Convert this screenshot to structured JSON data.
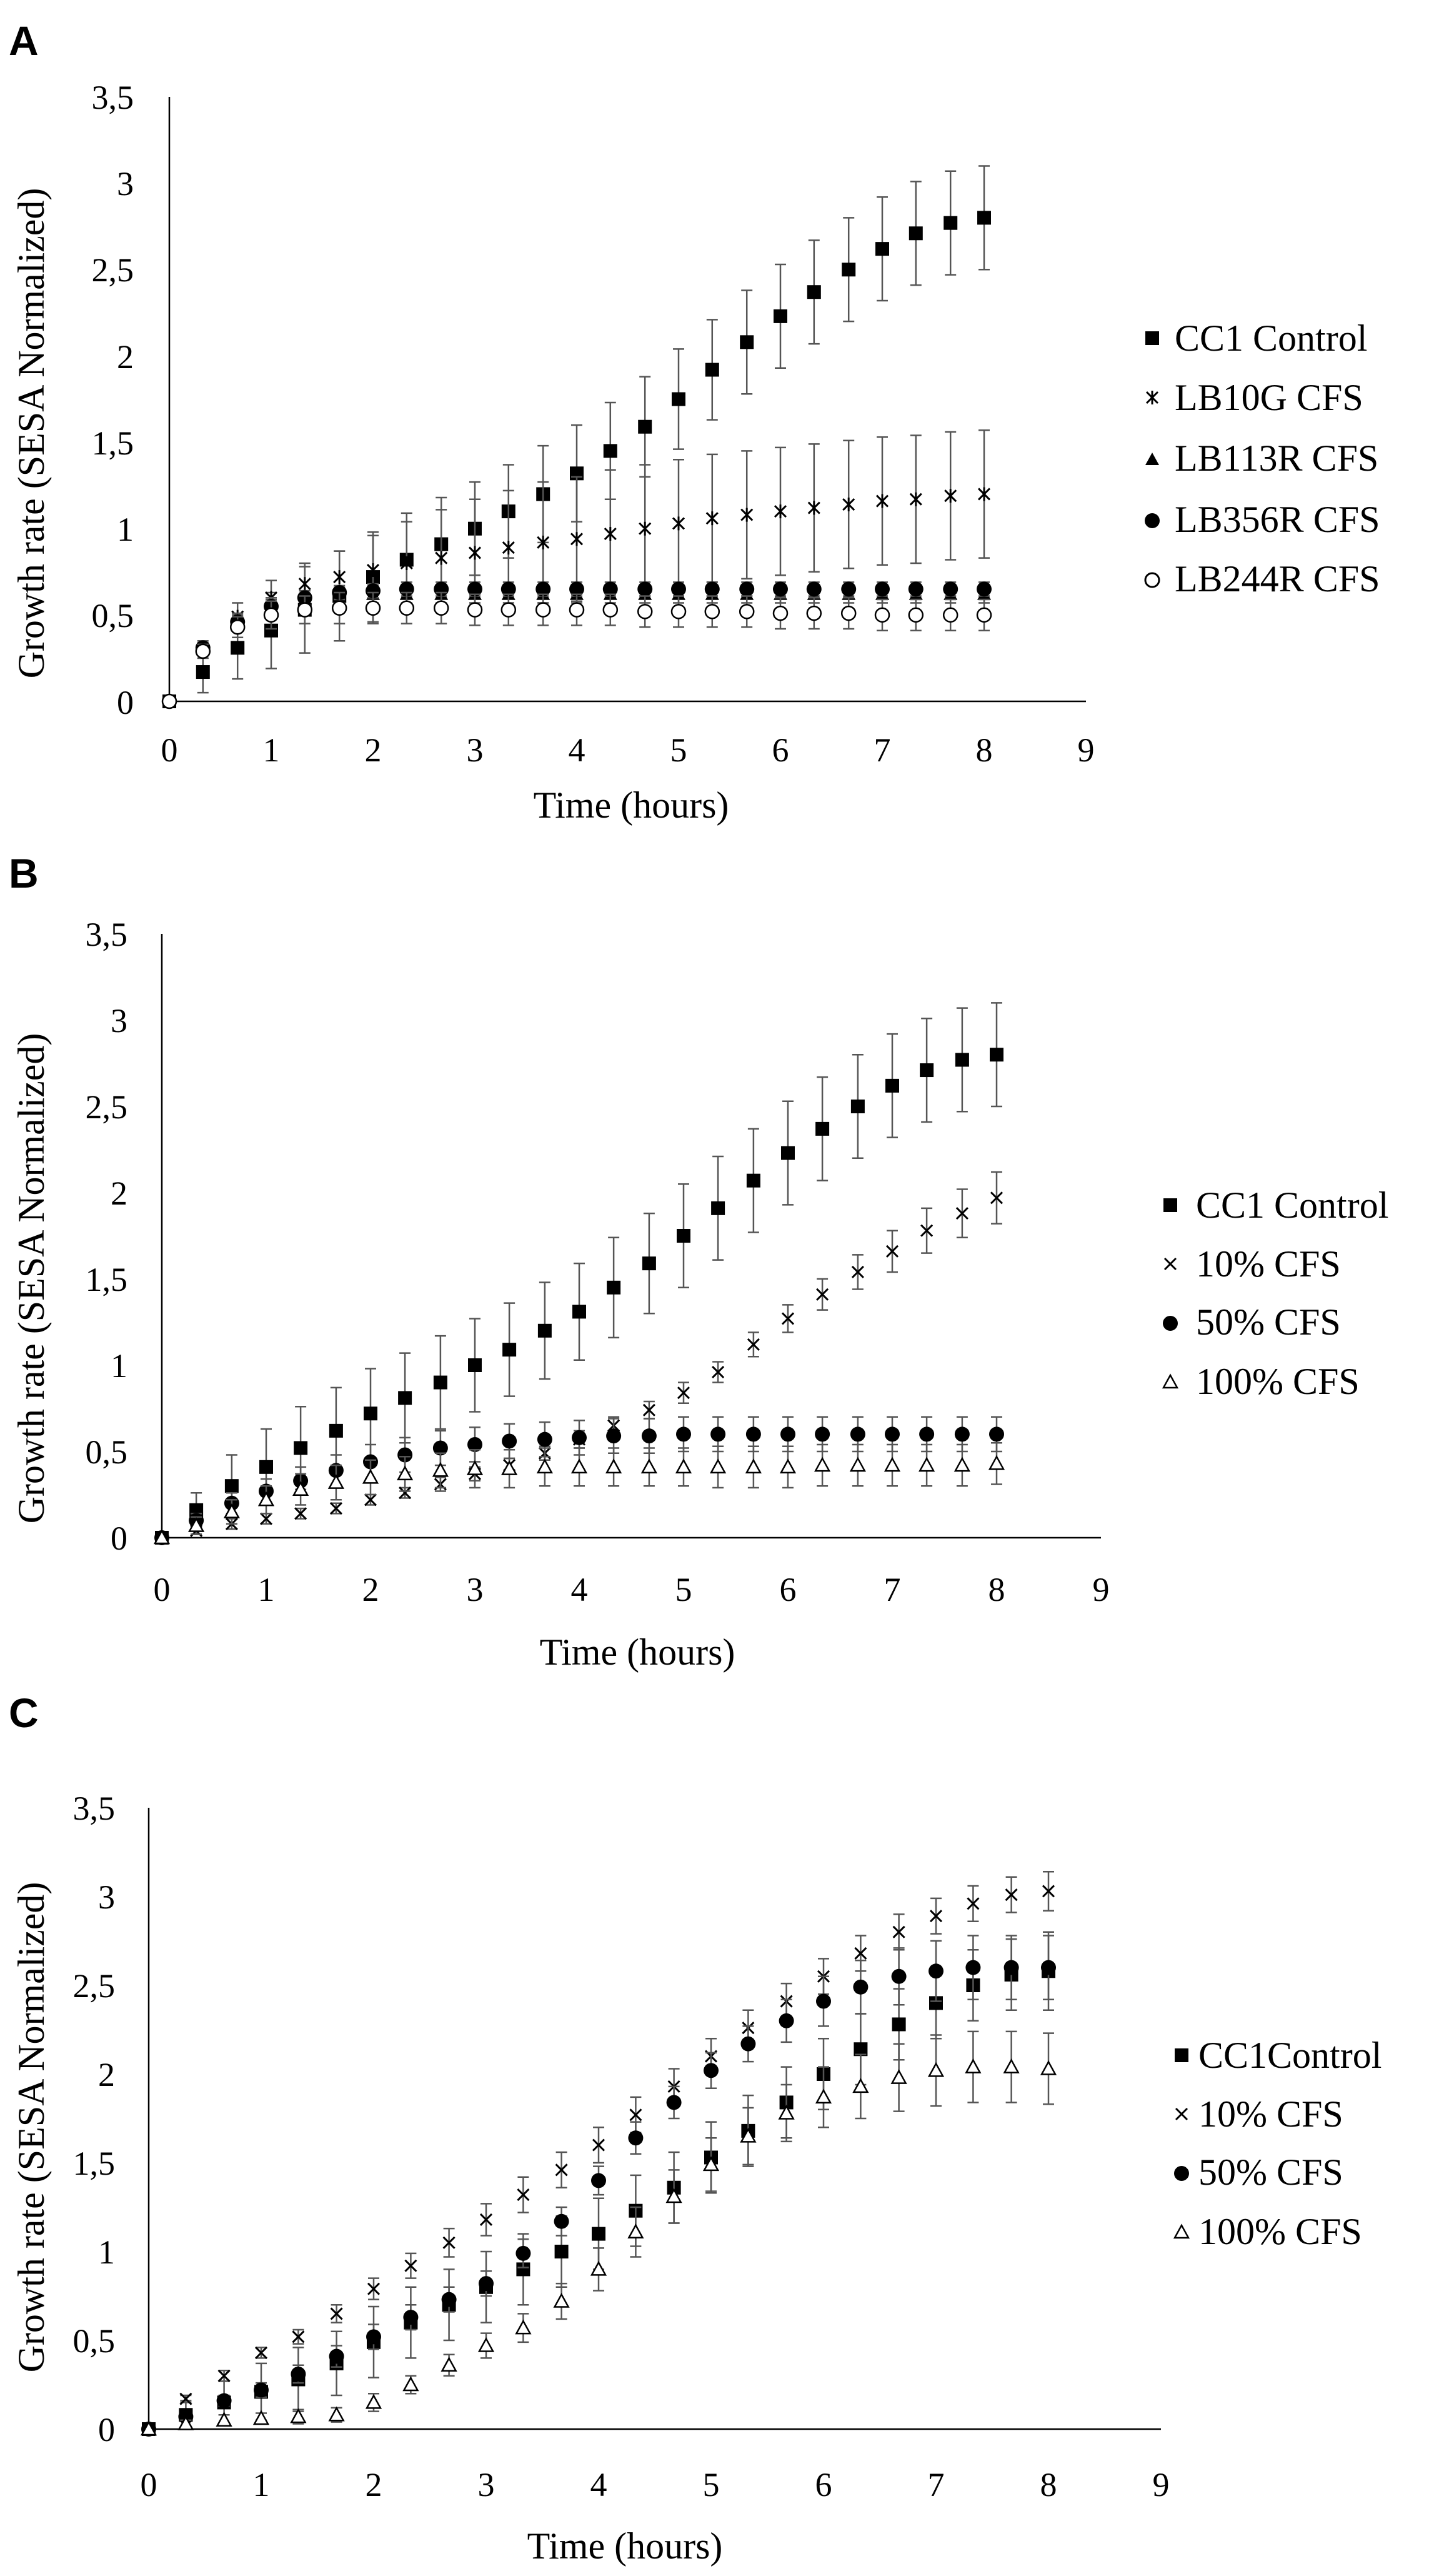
{
  "chart_data": [
    {
      "panel": "A",
      "type": "scatter",
      "xlabel": "Time (hours)",
      "ylabel": "Growth rate (SESA Normalized)",
      "xlim": [
        0,
        9
      ],
      "ylim": [
        0,
        3.5
      ],
      "xticks": [
        "0",
        "1",
        "2",
        "3",
        "4",
        "5",
        "6",
        "7",
        "8",
        "9"
      ],
      "yticks": [
        "0",
        "0,5",
        "1",
        "1,5",
        "2",
        "2,5",
        "3",
        "3,5"
      ],
      "legend_position": "right",
      "x": [
        0,
        0.33,
        0.67,
        1,
        1.33,
        1.67,
        2,
        2.33,
        2.67,
        3,
        3.33,
        3.67,
        4,
        4.33,
        4.67,
        5,
        5.33,
        5.67,
        6,
        6.33,
        6.67,
        7,
        7.33,
        7.67,
        8
      ],
      "series": [
        {
          "name": "CC1 Control",
          "marker": "square",
          "values": [
            0,
            0.17,
            0.31,
            0.41,
            0.53,
            0.61,
            0.72,
            0.82,
            0.91,
            1.0,
            1.1,
            1.2,
            1.32,
            1.45,
            1.59,
            1.75,
            1.92,
            2.08,
            2.23,
            2.37,
            2.5,
            2.62,
            2.71,
            2.77,
            2.8
          ],
          "errors": [
            0,
            0.12,
            0.18,
            0.22,
            0.25,
            0.26,
            0.26,
            0.27,
            0.27,
            0.27,
            0.27,
            0.28,
            0.28,
            0.28,
            0.29,
            0.29,
            0.29,
            0.3,
            0.3,
            0.3,
            0.3,
            0.3,
            0.3,
            0.3,
            0.3
          ]
        },
        {
          "name": "LB10G CFS",
          "marker": "star-x",
          "values": [
            0,
            0.3,
            0.49,
            0.6,
            0.68,
            0.72,
            0.76,
            0.8,
            0.83,
            0.86,
            0.89,
            0.92,
            0.94,
            0.97,
            1.0,
            1.03,
            1.06,
            1.08,
            1.1,
            1.12,
            1.14,
            1.16,
            1.17,
            1.19,
            1.2
          ],
          "errors": [
            0,
            0.05,
            0.08,
            0.1,
            0.12,
            0.15,
            0.2,
            0.24,
            0.28,
            0.31,
            0.33,
            0.35,
            0.36,
            0.37,
            0.37,
            0.37,
            0.37,
            0.37,
            0.37,
            0.37,
            0.37,
            0.37,
            0.37,
            0.37,
            0.37
          ]
        },
        {
          "name": "LB113R CFS",
          "marker": "triangle",
          "values": [
            0,
            0.3,
            0.47,
            0.55,
            0.59,
            0.61,
            0.62,
            0.62,
            0.62,
            0.62,
            0.62,
            0.62,
            0.62,
            0.62,
            0.62,
            0.62,
            0.62,
            0.62,
            0.62,
            0.62,
            0.62,
            0.62,
            0.62,
            0.62,
            0.62
          ],
          "errors": [
            0,
            0.03,
            0.04,
            0.05,
            0.05,
            0.05,
            0.05,
            0.05,
            0.05,
            0.05,
            0.05,
            0.05,
            0.05,
            0.05,
            0.05,
            0.05,
            0.05,
            0.05,
            0.05,
            0.05,
            0.05,
            0.05,
            0.05,
            0.05,
            0.05
          ]
        },
        {
          "name": "LB356R CFS",
          "marker": "circle",
          "values": [
            0,
            0.31,
            0.46,
            0.55,
            0.6,
            0.63,
            0.64,
            0.65,
            0.65,
            0.65,
            0.65,
            0.65,
            0.65,
            0.65,
            0.65,
            0.65,
            0.65,
            0.65,
            0.65,
            0.65,
            0.65,
            0.65,
            0.65,
            0.65,
            0.65
          ],
          "errors": [
            0,
            0.03,
            0.04,
            0.04,
            0.04,
            0.04,
            0.04,
            0.04,
            0.04,
            0.04,
            0.04,
            0.04,
            0.04,
            0.04,
            0.04,
            0.04,
            0.04,
            0.04,
            0.04,
            0.04,
            0.04,
            0.04,
            0.04,
            0.04,
            0.04
          ]
        },
        {
          "name": "LB244R CFS",
          "marker": "open-circle",
          "values": [
            0,
            0.29,
            0.43,
            0.5,
            0.53,
            0.54,
            0.54,
            0.54,
            0.54,
            0.53,
            0.53,
            0.53,
            0.53,
            0.53,
            0.52,
            0.52,
            0.52,
            0.52,
            0.51,
            0.51,
            0.51,
            0.5,
            0.5,
            0.5,
            0.5
          ],
          "errors": [
            0,
            0.04,
            0.06,
            0.08,
            0.08,
            0.09,
            0.09,
            0.09,
            0.09,
            0.09,
            0.09,
            0.09,
            0.09,
            0.09,
            0.09,
            0.09,
            0.09,
            0.09,
            0.09,
            0.09,
            0.09,
            0.09,
            0.09,
            0.09,
            0.09
          ]
        }
      ]
    },
    {
      "panel": "B",
      "type": "scatter",
      "xlabel": "Time (hours)",
      "ylabel": "Growth rate (SESA Normalized)",
      "xlim": [
        0,
        9
      ],
      "ylim": [
        0,
        3.5
      ],
      "xticks": [
        "0",
        "1",
        "2",
        "3",
        "4",
        "5",
        "6",
        "7",
        "8",
        "9"
      ],
      "yticks": [
        "0",
        "0,5",
        "1",
        "1,5",
        "2",
        "2,5",
        "3",
        "3,5"
      ],
      "legend_position": "right",
      "x": [
        0,
        0.33,
        0.67,
        1,
        1.33,
        1.67,
        2,
        2.33,
        2.67,
        3,
        3.33,
        3.67,
        4,
        4.33,
        4.67,
        5,
        5.33,
        5.67,
        6,
        6.33,
        6.67,
        7,
        7.33,
        7.67,
        8
      ],
      "series": [
        {
          "name": "CC1 Control",
          "marker": "square",
          "values": [
            0,
            0.16,
            0.3,
            0.41,
            0.52,
            0.62,
            0.72,
            0.81,
            0.9,
            1.0,
            1.09,
            1.2,
            1.31,
            1.45,
            1.59,
            1.75,
            1.91,
            2.07,
            2.23,
            2.37,
            2.5,
            2.62,
            2.71,
            2.77,
            2.8
          ],
          "errors": [
            0,
            0.1,
            0.18,
            0.22,
            0.24,
            0.25,
            0.26,
            0.26,
            0.27,
            0.27,
            0.27,
            0.28,
            0.28,
            0.29,
            0.29,
            0.3,
            0.3,
            0.3,
            0.3,
            0.3,
            0.3,
            0.3,
            0.3,
            0.3,
            0.3
          ]
        },
        {
          "name": "10% CFS",
          "marker": "x",
          "values": [
            0,
            0.04,
            0.08,
            0.11,
            0.14,
            0.17,
            0.22,
            0.26,
            0.31,
            0.37,
            0.42,
            0.49,
            0.57,
            0.65,
            0.74,
            0.84,
            0.96,
            1.12,
            1.27,
            1.41,
            1.54,
            1.66,
            1.78,
            1.88,
            1.97
          ],
          "errors": [
            0,
            0.02,
            0.03,
            0.03,
            0.03,
            0.03,
            0.03,
            0.03,
            0.04,
            0.04,
            0.04,
            0.04,
            0.05,
            0.05,
            0.05,
            0.06,
            0.06,
            0.07,
            0.08,
            0.09,
            0.1,
            0.12,
            0.13,
            0.14,
            0.15
          ]
        },
        {
          "name": "50% CFS",
          "marker": "circle",
          "values": [
            0,
            0.1,
            0.2,
            0.27,
            0.33,
            0.39,
            0.44,
            0.48,
            0.52,
            0.54,
            0.56,
            0.57,
            0.58,
            0.59,
            0.59,
            0.6,
            0.6,
            0.6,
            0.6,
            0.6,
            0.6,
            0.6,
            0.6,
            0.6,
            0.6
          ],
          "errors": [
            0,
            0.04,
            0.06,
            0.07,
            0.08,
            0.09,
            0.1,
            0.1,
            0.1,
            0.1,
            0.1,
            0.1,
            0.1,
            0.1,
            0.1,
            0.1,
            0.1,
            0.1,
            0.1,
            0.1,
            0.1,
            0.1,
            0.1,
            0.1,
            0.1
          ]
        },
        {
          "name": "100% CFS",
          "marker": "open-triangle",
          "values": [
            0,
            0.07,
            0.15,
            0.22,
            0.28,
            0.32,
            0.35,
            0.37,
            0.39,
            0.4,
            0.4,
            0.41,
            0.41,
            0.41,
            0.41,
            0.41,
            0.41,
            0.41,
            0.41,
            0.42,
            0.42,
            0.42,
            0.42,
            0.42,
            0.43
          ],
          "errors": [
            0,
            0.05,
            0.07,
            0.08,
            0.09,
            0.1,
            0.1,
            0.1,
            0.1,
            0.11,
            0.11,
            0.11,
            0.11,
            0.11,
            0.11,
            0.11,
            0.12,
            0.12,
            0.12,
            0.12,
            0.12,
            0.12,
            0.12,
            0.12,
            0.12
          ]
        }
      ]
    },
    {
      "panel": "C",
      "type": "scatter",
      "xlabel": "Time (hours)",
      "ylabel": "Growth rate (SESA Normalized)",
      "xlim": [
        0,
        9
      ],
      "ylim": [
        0,
        3.5
      ],
      "xticks": [
        "0",
        "1",
        "2",
        "3",
        "4",
        "5",
        "6",
        "7",
        "8",
        "9"
      ],
      "yticks": [
        "0",
        "0,5",
        "1",
        "1,5",
        "2",
        "2,5",
        "3",
        "3,5"
      ],
      "legend_position": "right",
      "x": [
        0,
        0.33,
        0.67,
        1,
        1.33,
        1.67,
        2,
        2.33,
        2.67,
        3,
        3.33,
        3.67,
        4,
        4.33,
        4.67,
        5,
        5.33,
        5.67,
        6,
        6.33,
        6.67,
        7,
        7.33,
        7.67,
        8
      ],
      "series": [
        {
          "name": "CC1Control",
          "marker": "square",
          "values": [
            0,
            0.08,
            0.15,
            0.21,
            0.28,
            0.37,
            0.49,
            0.6,
            0.7,
            0.8,
            0.9,
            1.0,
            1.1,
            1.23,
            1.36,
            1.53,
            1.68,
            1.84,
            2.0,
            2.14,
            2.28,
            2.4,
            2.5,
            2.56,
            2.58
          ],
          "errors": [
            0,
            0.08,
            0.12,
            0.16,
            0.18,
            0.18,
            0.2,
            0.2,
            0.2,
            0.2,
            0.2,
            0.2,
            0.2,
            0.2,
            0.2,
            0.2,
            0.2,
            0.2,
            0.2,
            0.2,
            0.2,
            0.2,
            0.2,
            0.2,
            0.22
          ]
        },
        {
          "name": "10% CFS",
          "marker": "x",
          "values": [
            0,
            0.17,
            0.3,
            0.43,
            0.52,
            0.65,
            0.79,
            0.92,
            1.05,
            1.18,
            1.32,
            1.46,
            1.6,
            1.77,
            1.93,
            2.1,
            2.26,
            2.41,
            2.55,
            2.68,
            2.8,
            2.89,
            2.96,
            3.01,
            3.03
          ],
          "errors": [
            0,
            0.02,
            0.03,
            0.03,
            0.04,
            0.05,
            0.06,
            0.07,
            0.08,
            0.09,
            0.1,
            0.1,
            0.1,
            0.1,
            0.1,
            0.1,
            0.1,
            0.1,
            0.1,
            0.1,
            0.1,
            0.1,
            0.1,
            0.1,
            0.11
          ]
        },
        {
          "name": "50% CFS",
          "marker": "circle",
          "values": [
            0,
            0.07,
            0.16,
            0.22,
            0.31,
            0.41,
            0.52,
            0.63,
            0.73,
            0.82,
            0.99,
            1.17,
            1.4,
            1.64,
            1.84,
            2.02,
            2.17,
            2.3,
            2.41,
            2.49,
            2.55,
            2.58,
            2.6,
            2.6,
            2.6
          ],
          "errors": [
            0,
            0.02,
            0.03,
            0.04,
            0.05,
            0.06,
            0.07,
            0.07,
            0.07,
            0.07,
            0.08,
            0.08,
            0.08,
            0.09,
            0.09,
            0.1,
            0.1,
            0.12,
            0.14,
            0.15,
            0.16,
            0.17,
            0.18,
            0.18,
            0.18
          ]
        },
        {
          "name": "100% CFS",
          "marker": "open-triangle",
          "values": [
            0,
            0.03,
            0.05,
            0.06,
            0.07,
            0.08,
            0.15,
            0.25,
            0.36,
            0.47,
            0.57,
            0.72,
            0.9,
            1.11,
            1.31,
            1.49,
            1.65,
            1.78,
            1.87,
            1.93,
            1.98,
            2.02,
            2.04,
            2.04,
            2.03
          ],
          "errors": [
            0,
            0.02,
            0.03,
            0.03,
            0.04,
            0.04,
            0.05,
            0.05,
            0.06,
            0.07,
            0.08,
            0.1,
            0.12,
            0.14,
            0.15,
            0.15,
            0.16,
            0.16,
            0.17,
            0.18,
            0.19,
            0.2,
            0.2,
            0.2,
            0.2
          ]
        }
      ]
    }
  ]
}
